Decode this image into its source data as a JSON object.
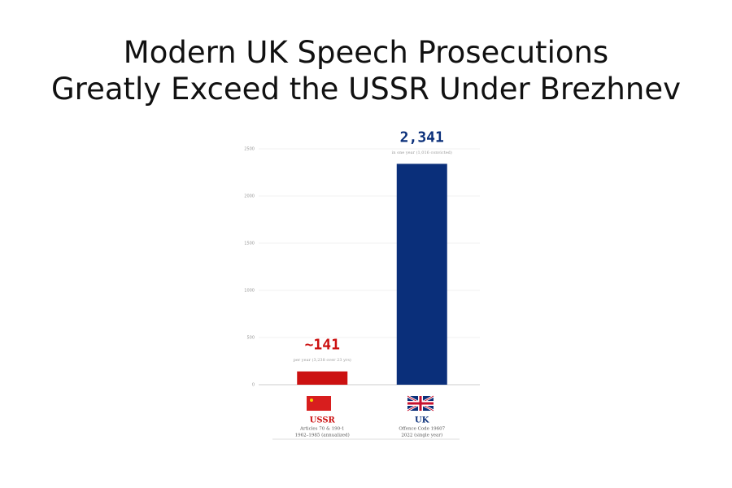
{
  "chart_data": {
    "type": "bar",
    "title": [
      "Modern UK Speech Prosecutions",
      "Greatly Exceed the USSR Under Brezhnev"
    ],
    "categories": [
      "USSR",
      "UK"
    ],
    "values": [
      141,
      2341
    ],
    "value_labels": [
      "~141",
      "2,341"
    ],
    "notes": [
      "per year (3,238 over 23 yrs)",
      "in one year (1,016 convicted)"
    ],
    "descriptions": [
      [
        "Articles 70 & 190-1",
        "1962–1985 (annualized)"
      ],
      [
        "Offence Code 19607",
        "2022 (single year)"
      ]
    ],
    "colors": [
      "#cc1111",
      "#0a2f7a"
    ],
    "ylim": [
      0,
      2500
    ],
    "yticks": [
      0,
      500,
      1000,
      1500,
      2000,
      2500
    ],
    "grid": true
  }
}
